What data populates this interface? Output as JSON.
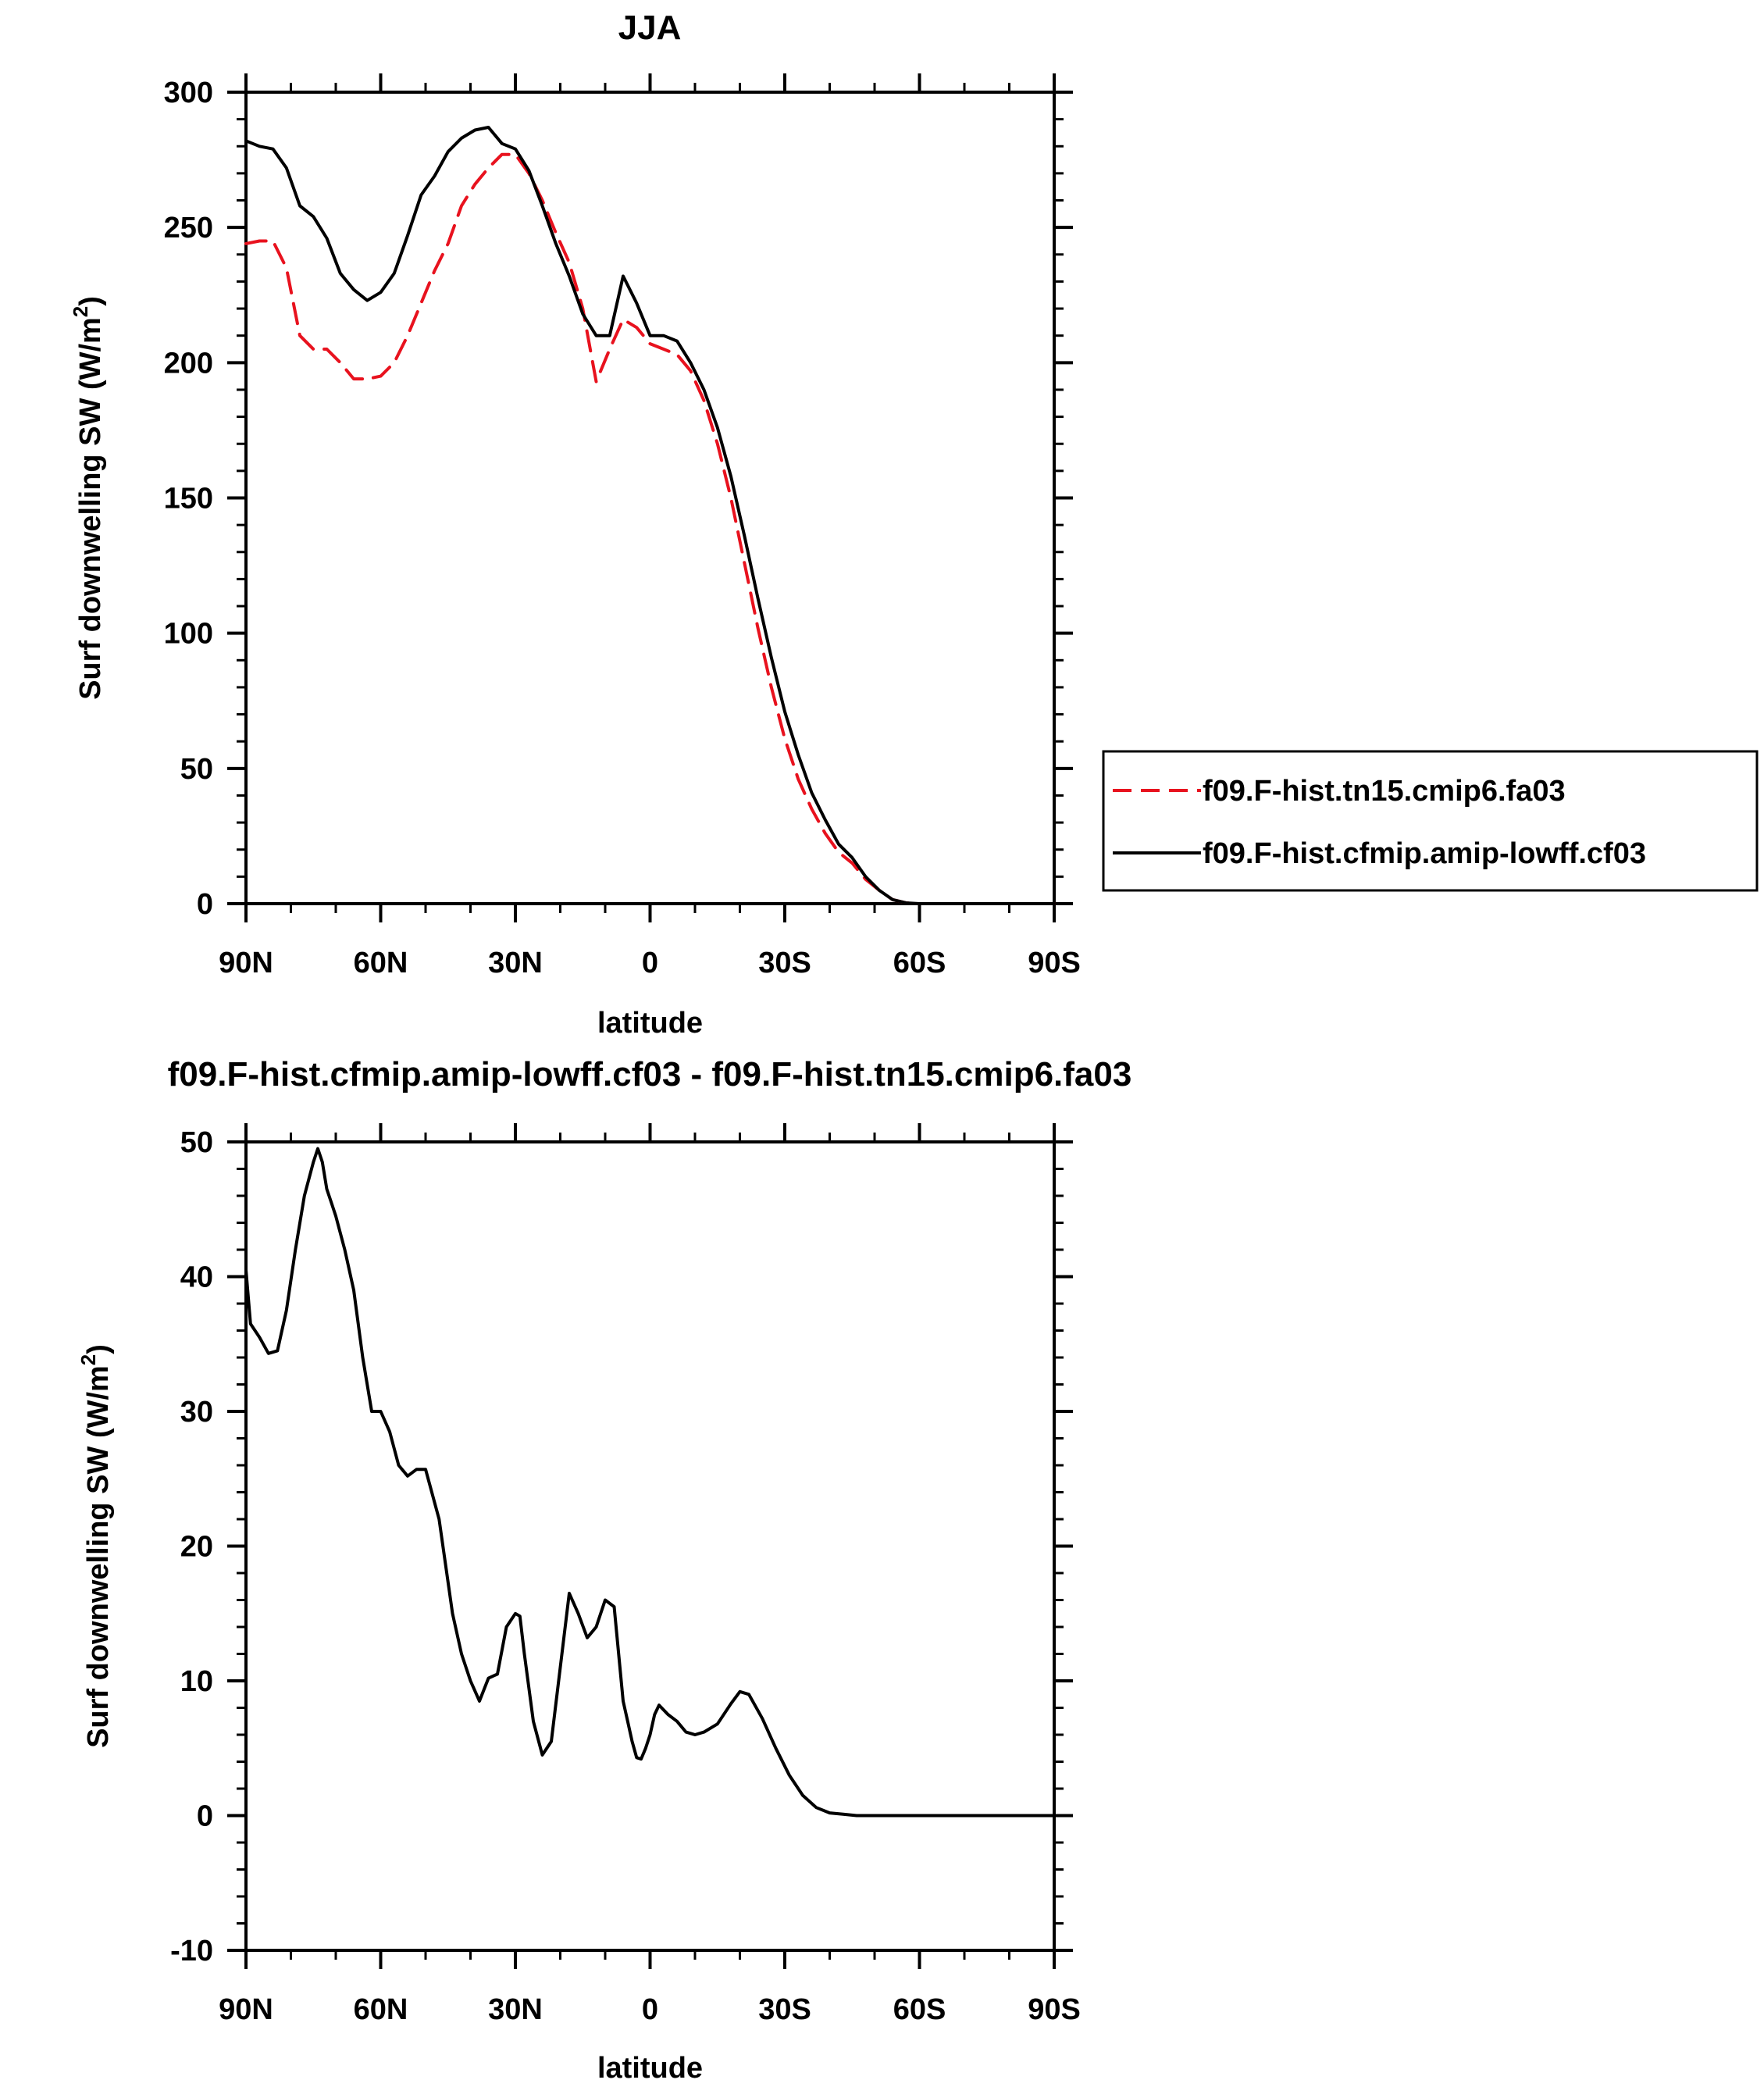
{
  "chart_data": [
    {
      "type": "line",
      "title": "JJA",
      "xlabel": "latitude",
      "ylabel_main": "Surf downwelling SW (W/m",
      "ylabel_sup": "2",
      "ylabel_close": ")",
      "xlim": [
        90,
        -90
      ],
      "ylim": [
        0,
        300
      ],
      "xticks": [
        90,
        60,
        30,
        0,
        -30,
        -60,
        -90
      ],
      "xtick_labels": [
        "90N",
        "60N",
        "30N",
        "0",
        "30S",
        "60S",
        "90S"
      ],
      "yticks": [
        0,
        50,
        100,
        150,
        200,
        250,
        300
      ],
      "ytick_labels": [
        "0",
        "50",
        "100",
        "150",
        "200",
        "250",
        "300"
      ],
      "legend": [
        "f09.F-hist.tn15.cmip6.fa03",
        "f09.F-hist.cfmip.amip-lowff.cf03"
      ],
      "series": [
        {
          "name": "f09.F-hist.tn15.cmip6.fa03",
          "color": "#e8121e",
          "dash": "dashed",
          "x": [
            90,
            87,
            84,
            81,
            78,
            75,
            72,
            69,
            66,
            63,
            60,
            57,
            54,
            51,
            48,
            45,
            42,
            39,
            36,
            33,
            30,
            27,
            24,
            21,
            18,
            15,
            12,
            9,
            6,
            3,
            0,
            -3,
            -6,
            -9,
            -12,
            -15,
            -18,
            -21,
            -24,
            -27,
            -30,
            -33,
            -36,
            -39,
            -42,
            -45,
            -48,
            -51,
            -54,
            -57,
            -60,
            -63,
            -66,
            -69,
            -72,
            -75,
            -78,
            -81,
            -84,
            -87,
            -90
          ],
          "y": [
            244,
            245,
            245,
            235,
            210,
            205,
            205,
            200,
            194,
            194,
            195,
            200,
            210,
            222,
            234,
            244,
            258,
            266,
            272,
            277,
            277,
            270,
            260,
            248,
            237,
            220,
            193,
            205,
            216,
            213,
            207,
            205,
            203,
            197,
            186,
            170,
            150,
            126,
            102,
            80,
            61,
            46,
            35,
            26,
            19,
            15,
            9,
            5,
            1.5,
            0.3,
            0,
            0,
            0,
            0,
            0,
            0,
            0,
            0,
            0,
            0,
            0
          ]
        },
        {
          "name": "f09.F-hist.cfmip.amip-lowff.cf03",
          "color": "#000000",
          "dash": "solid",
          "x": [
            90,
            87,
            84,
            81,
            78,
            75,
            72,
            69,
            66,
            63,
            60,
            57,
            54,
            51,
            48,
            45,
            42,
            39,
            36,
            33,
            30,
            27,
            24,
            21,
            18,
            15,
            12,
            9,
            6,
            3,
            0,
            -3,
            -6,
            -9,
            -12,
            -15,
            -18,
            -21,
            -24,
            -27,
            -30,
            -33,
            -36,
            -39,
            -42,
            -45,
            -48,
            -51,
            -54,
            -57,
            -60,
            -63,
            -66,
            -69,
            -72,
            -75,
            -78,
            -81,
            -84,
            -87,
            -90
          ],
          "y": [
            282,
            280,
            279,
            272,
            258,
            254,
            246,
            233,
            227,
            223,
            226,
            233,
            247,
            262,
            269,
            278,
            283,
            286,
            287,
            281,
            279,
            271,
            258,
            244,
            232,
            218,
            210,
            210,
            232,
            222,
            210,
            210,
            208,
            200,
            190,
            176,
            158,
            136,
            113,
            91,
            71,
            55,
            41,
            31,
            22,
            17,
            10,
            5,
            1.5,
            0.3,
            0,
            0,
            0,
            0,
            0,
            0,
            0,
            0,
            0,
            0,
            0
          ]
        }
      ]
    },
    {
      "type": "line",
      "title": "f09.F-hist.cfmip.amip-lowff.cf03 - f09.F-hist.tn15.cmip6.fa03",
      "xlabel": "latitude",
      "ylabel_main": "Surf downwelling SW (W/m",
      "ylabel_sup": "2",
      "ylabel_close": ")",
      "xlim": [
        90,
        -90
      ],
      "ylim": [
        -10,
        50
      ],
      "xticks": [
        90,
        60,
        30,
        0,
        -30,
        -60,
        -90
      ],
      "xtick_labels": [
        "90N",
        "60N",
        "30N",
        "0",
        "30S",
        "60S",
        "90S"
      ],
      "yticks": [
        -10,
        0,
        10,
        20,
        30,
        40,
        50
      ],
      "ytick_labels": [
        "-10",
        "0",
        "10",
        "20",
        "30",
        "40",
        "50"
      ],
      "series": [
        {
          "name": "f09.F-hist.cfmip.amip-lowff.cf03 - f09.F-hist.tn15.cmip6.fa03",
          "color": "#000000",
          "dash": "solid",
          "x": [
            90,
            89,
            87,
            85,
            83,
            81,
            79,
            77,
            75,
            74,
            73,
            72,
            71,
            70,
            68,
            66,
            64,
            62,
            60,
            58,
            56,
            54,
            52,
            50,
            47,
            44,
            42,
            40,
            38,
            36,
            34,
            32,
            30,
            29,
            28,
            26,
            24,
            22,
            20,
            18,
            16,
            14,
            12,
            10,
            8,
            6,
            5,
            4,
            3,
            2,
            1,
            0,
            -1,
            -2,
            -4,
            -6,
            -8,
            -10,
            -12,
            -15,
            -18,
            -20,
            -22,
            -25,
            -28,
            -31,
            -34,
            -37,
            -40,
            -43,
            -46,
            -49,
            -52,
            -55,
            -58,
            -61,
            -64,
            -67,
            -70,
            -75,
            -80,
            -85,
            -90
          ],
          "y": [
            40.5,
            36.5,
            35.5,
            34.3,
            34.5,
            37.5,
            42,
            46,
            48.5,
            49.5,
            48.5,
            46.5,
            45.5,
            44.5,
            42,
            39,
            34,
            30,
            30,
            28.5,
            26,
            25.2,
            25.7,
            25.7,
            22,
            15,
            12,
            10,
            8.5,
            10.2,
            10.5,
            14,
            15,
            14.8,
            12,
            7,
            4.5,
            5.5,
            11,
            16.5,
            15,
            13.2,
            14,
            16,
            15.5,
            8.5,
            7,
            5.5,
            4.3,
            4.2,
            5,
            6,
            7.5,
            8.2,
            7.5,
            7,
            6.2,
            6,
            6.2,
            6.8,
            8.3,
            9.2,
            9,
            7.2,
            5,
            3,
            1.5,
            0.6,
            0.2,
            0.1,
            0,
            0,
            0,
            0,
            0,
            0,
            0,
            0,
            0,
            0,
            0,
            0,
            0
          ]
        }
      ]
    }
  ]
}
